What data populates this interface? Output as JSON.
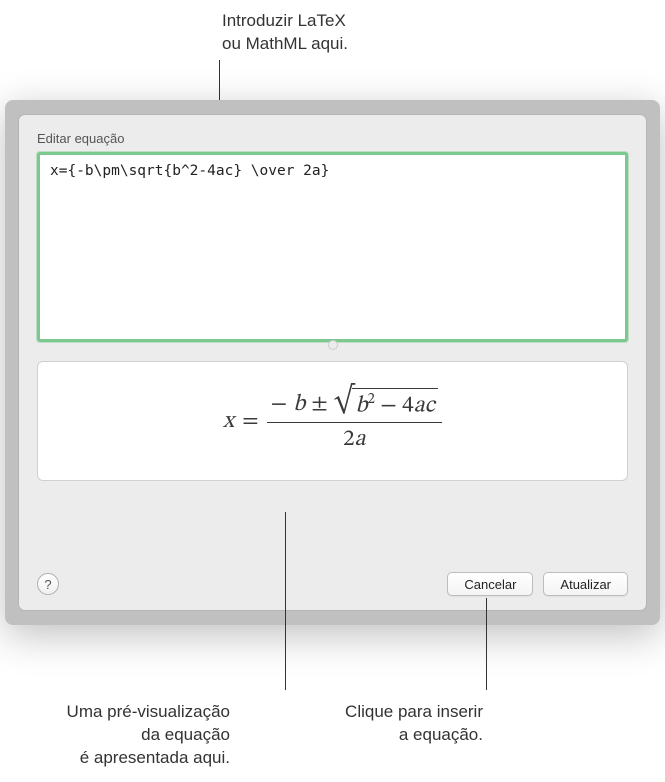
{
  "callouts": {
    "top": "Introduzir LaTeX\nou MathML aqui.",
    "bottom_left": "Uma pré-visualização\nda equação\né apresentada aqui.",
    "bottom_right": "Clique para inserir\na equação."
  },
  "dialog": {
    "title": "Editar equação",
    "input_value": "x={-b\\pm\\sqrt{b^2-4ac} \\over 2a}",
    "help_label": "?",
    "cancel_label": "Cancelar",
    "update_label": "Atualizar"
  },
  "preview_equation": {
    "lhs": "x",
    "equals": "=",
    "numerator_prefix_minus": "−",
    "numerator_b": "b",
    "pm": "±",
    "sqrt_b": "b",
    "sqrt_exp": "2",
    "sqrt_minus": "− 4",
    "sqrt_a": "a",
    "sqrt_c": "c",
    "denominator_two": "2",
    "denominator_a": "a"
  },
  "colors": {
    "input_border": "#7bc98f",
    "dialog_bg": "#ececec",
    "text": "#3a3a3a"
  }
}
